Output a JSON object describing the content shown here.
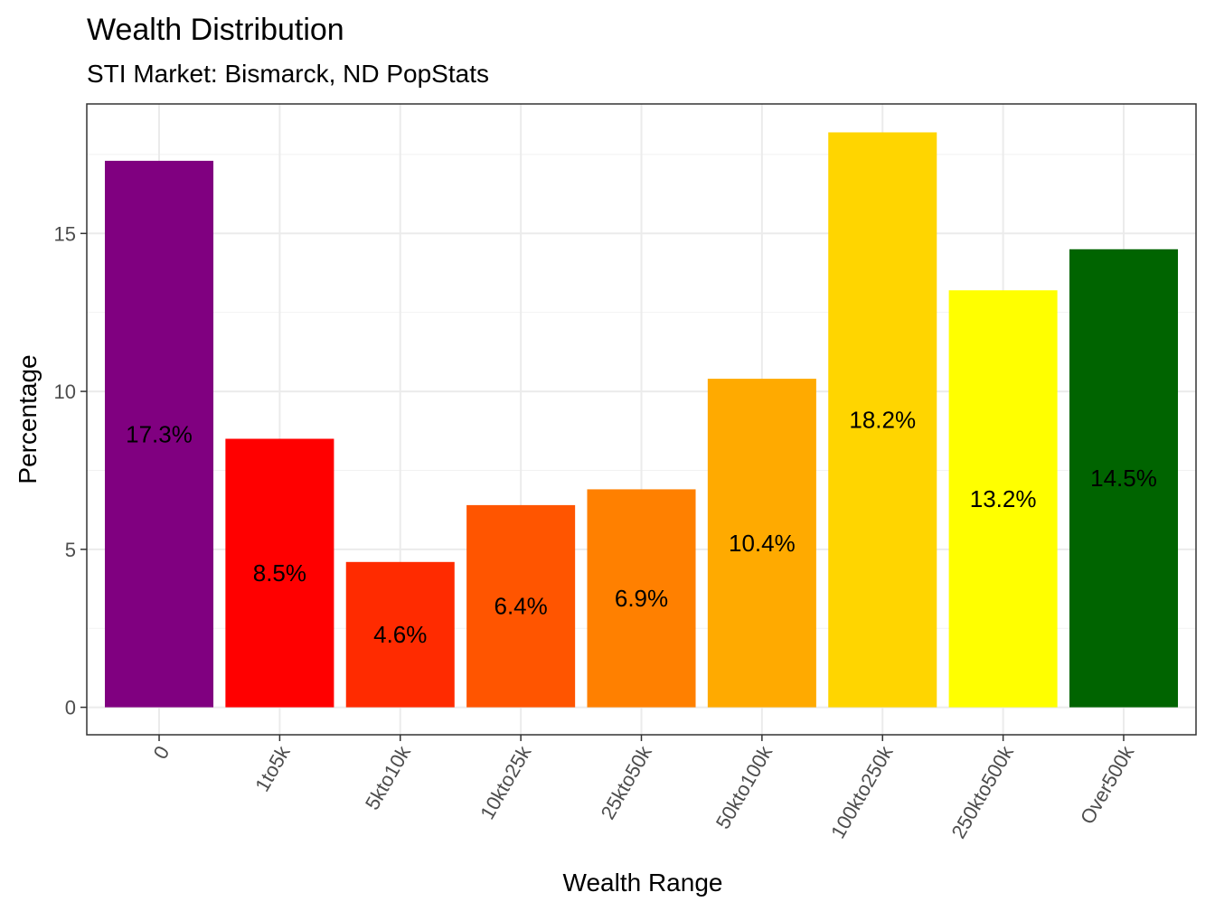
{
  "chart_data": {
    "type": "bar",
    "title": "Wealth Distribution",
    "subtitle": "STI Market: Bismarck, ND PopStats",
    "xlabel": "Wealth Range",
    "ylabel": "Percentage",
    "categories": [
      "0",
      "1to5k",
      "5kto10k",
      "10kto25k",
      "25kto50k",
      "50kto100k",
      "100kto250k",
      "250kto500k",
      "Over500k"
    ],
    "values": [
      17.3,
      8.5,
      4.6,
      6.4,
      6.9,
      10.4,
      18.2,
      13.2,
      14.5
    ],
    "labels": [
      "17.3%",
      "8.5%",
      "4.6%",
      "6.4%",
      "6.9%",
      "10.4%",
      "18.2%",
      "13.2%",
      "14.5%"
    ],
    "colors": [
      "#800080",
      "#FF0000",
      "#FF2B00",
      "#FF5500",
      "#FF8000",
      "#FFAA00",
      "#FFD500",
      "#FFFF00",
      "#006400"
    ],
    "yticks": [
      "0",
      "5",
      "10",
      "15"
    ],
    "ylim": [
      -0.87,
      19.1
    ],
    "grid": true,
    "legend": "none"
  }
}
